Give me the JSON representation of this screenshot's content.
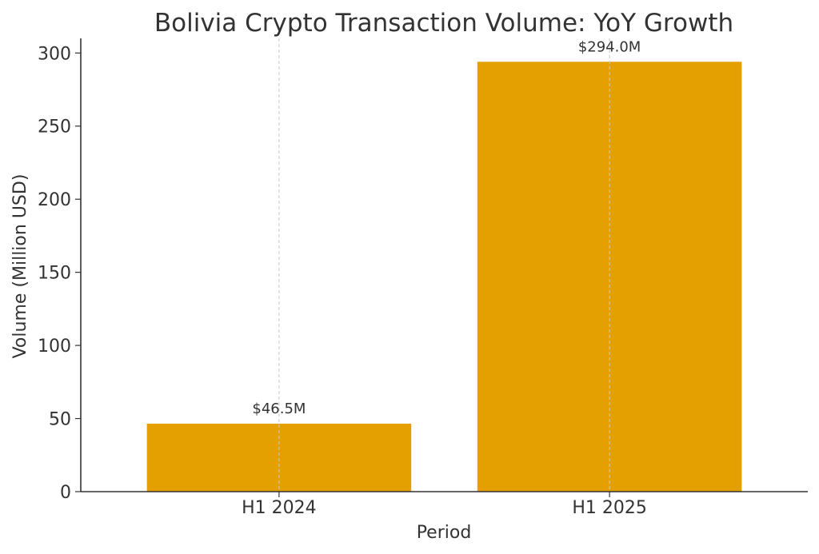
{
  "chart_data": {
    "type": "bar",
    "title": "Bolivia Crypto Transaction Volume: YoY Growth",
    "xlabel": "Period",
    "ylabel": "Volume (Million USD)",
    "categories": [
      "H1 2024",
      "H1 2025"
    ],
    "values": [
      46.5,
      294.0
    ],
    "data_labels": [
      "$46.5M",
      "$294.0M"
    ],
    "ylim": [
      0,
      310
    ],
    "yticks": [
      0,
      50,
      100,
      150,
      200,
      250,
      300
    ],
    "grid": "x-axis, dashed, light gray",
    "bar_color": "#E3A000",
    "legend": "none"
  }
}
